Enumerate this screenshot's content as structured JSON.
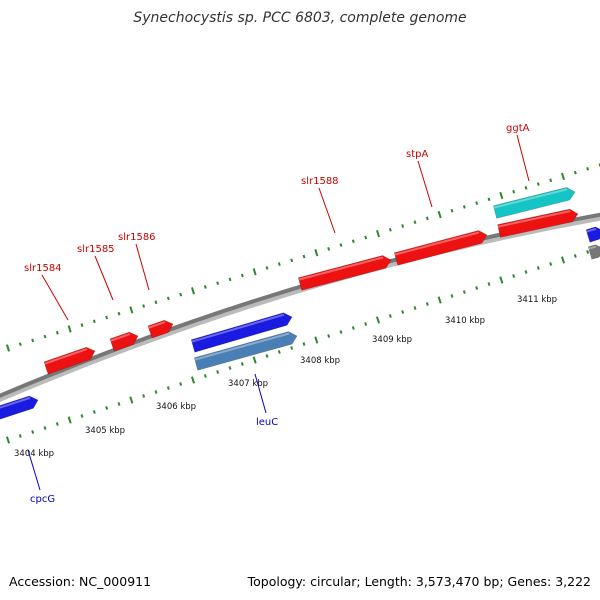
{
  "title": "Synechocystis sp. PCC 6803, complete genome",
  "footer": {
    "accession": "Accession: NC_000911",
    "summary": "Topology: circular; Length: 3,573,470 bp; Genes: 3,222"
  },
  "colors": {
    "forward_gene": "#ee1111",
    "reverse_gene": "#1a1ae0",
    "cyan_gene": "#15c4c4",
    "steel_gene": "#4a7fb5",
    "backbone": "#777777",
    "tick": "#2a8a2a",
    "label_forward": "#cc0000",
    "label_reverse": "#0000cc"
  },
  "kbp_labels": [
    {
      "kbp": 3404,
      "text": "3404 kbp"
    },
    {
      "kbp": 3405,
      "text": "3405 kbp"
    },
    {
      "kbp": 3406,
      "text": "3406 kbp"
    },
    {
      "kbp": 3407,
      "text": "3407 kbp"
    },
    {
      "kbp": 3408,
      "text": "3408 kbp"
    },
    {
      "kbp": 3409,
      "text": "3409 kbp"
    },
    {
      "kbp": 3410,
      "text": "3410 kbp"
    },
    {
      "kbp": 3411,
      "text": "3411 kbp"
    }
  ],
  "gene_labels": [
    {
      "name": "slr1584",
      "strand": "forward"
    },
    {
      "name": "slr1585",
      "strand": "forward"
    },
    {
      "name": "slr1586",
      "strand": "forward"
    },
    {
      "name": "slr1588",
      "strand": "forward"
    },
    {
      "name": "stpA",
      "strand": "forward"
    },
    {
      "name": "ggtA",
      "strand": "forward"
    },
    {
      "name": "leuC",
      "strand": "reverse"
    },
    {
      "name": "cpcG",
      "strand": "reverse"
    }
  ]
}
